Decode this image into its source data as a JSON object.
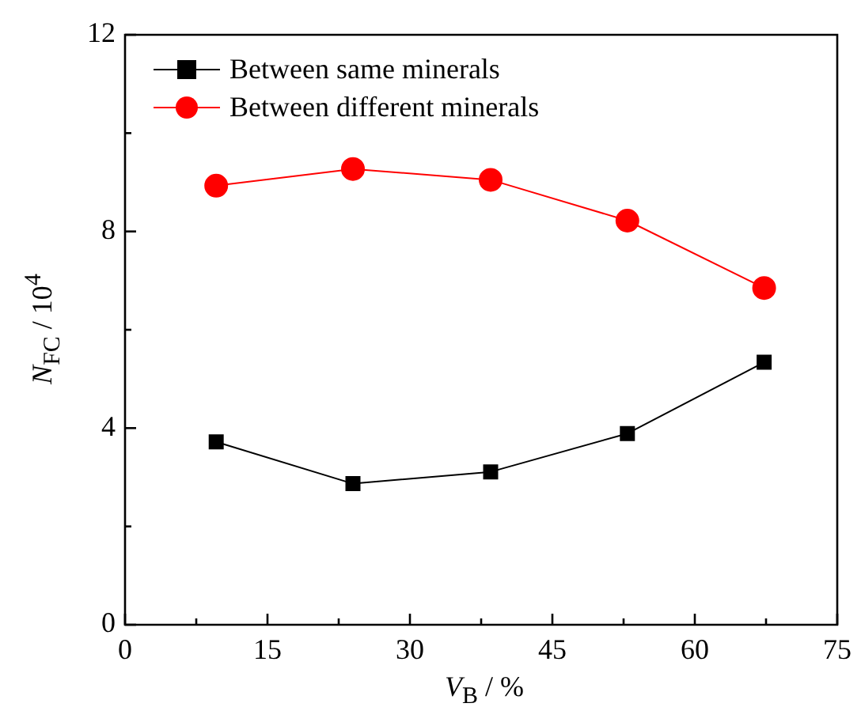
{
  "chart_data": {
    "type": "line",
    "xlabel": "V$_{B}$ / %",
    "ylabel": "N$_{FC}$ / 10$^{4}$",
    "x": [
      9.6,
      24,
      38.5,
      52.9,
      67.3
    ],
    "series": [
      {
        "name": "Between same minerals",
        "color": "#000000",
        "marker": "square",
        "values": [
          3.72,
          2.87,
          3.11,
          3.89,
          5.34
        ]
      },
      {
        "name": "Between different minerals",
        "color": "#ff0000",
        "marker": "circle",
        "values": [
          8.93,
          9.27,
          9.05,
          8.22,
          6.85
        ]
      }
    ],
    "xlim": [
      0,
      75
    ],
    "ylim": [
      0,
      12
    ],
    "xticks": [
      0,
      {
        "value": 7.5,
        "label": null
      },
      15,
      {
        "value": 22.5,
        "label": null
      },
      30,
      {
        "value": 37.5,
        "label": null
      },
      45,
      {
        "value": 52.5,
        "label": null
      },
      60,
      {
        "value": 67.5,
        "label": null
      },
      75
    ],
    "yticks": [
      0,
      {
        "value": 2,
        "label": null
      },
      4,
      {
        "value": 6,
        "label": null
      },
      8,
      {
        "value": 10,
        "label": null
      },
      12
    ],
    "grid": false,
    "legend": "top left",
    "line_style": "solid"
  }
}
